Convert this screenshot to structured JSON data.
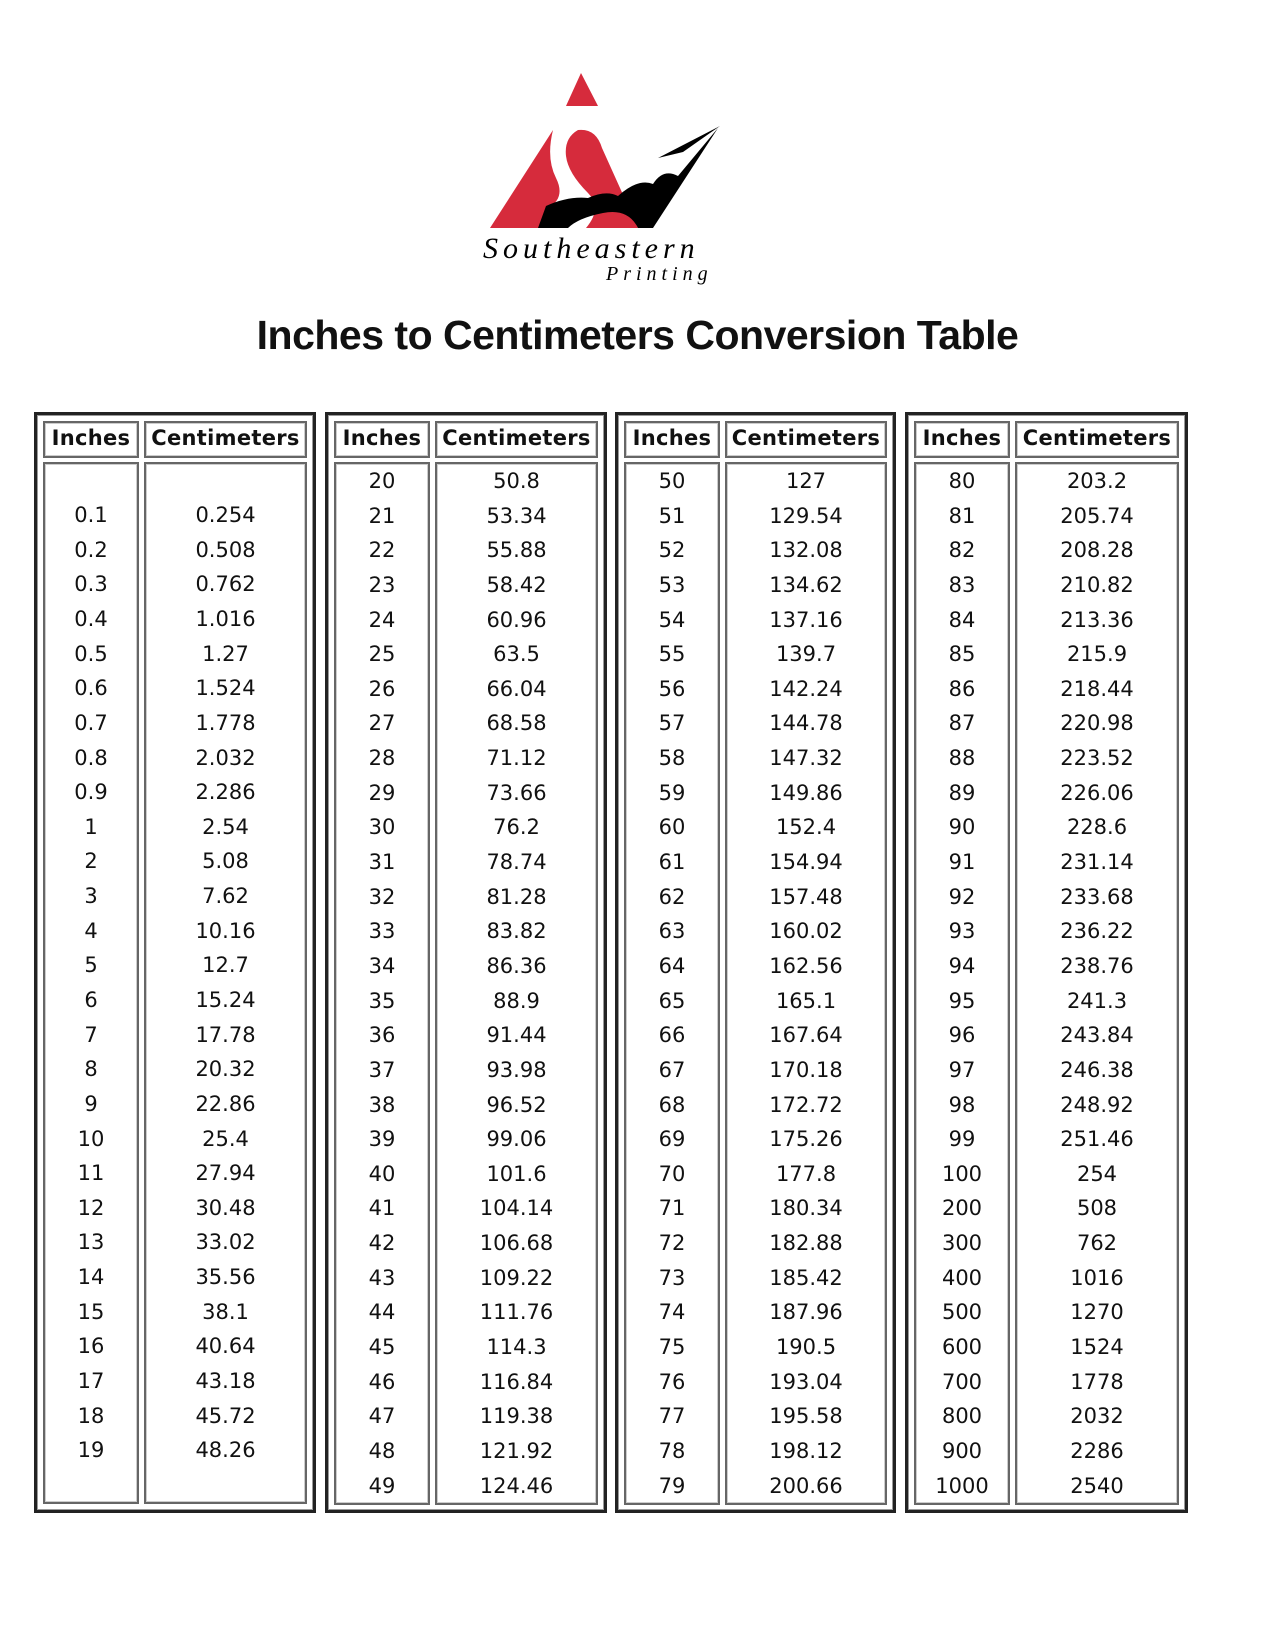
{
  "logo": {
    "company": "Southeastern",
    "sub": "Printing",
    "colors": {
      "red": "#d62b3c",
      "black": "#000000"
    }
  },
  "title": "Inches to Centimeters Conversion Table",
  "headers": {
    "inches": "Inches",
    "cm": "Centimeters"
  },
  "panels": [
    {
      "rows": [
        [
          "0.1",
          "0.254"
        ],
        [
          "0.2",
          "0.508"
        ],
        [
          "0.3",
          "0.762"
        ],
        [
          "0.4",
          "1.016"
        ],
        [
          "0.5",
          "1.27"
        ],
        [
          "0.6",
          "1.524"
        ],
        [
          "0.7",
          "1.778"
        ],
        [
          "0.8",
          "2.032"
        ],
        [
          "0.9",
          "2.286"
        ],
        [
          "1",
          "2.54"
        ],
        [
          "2",
          "5.08"
        ],
        [
          "3",
          "7.62"
        ],
        [
          "4",
          "10.16"
        ],
        [
          "5",
          "12.7"
        ],
        [
          "6",
          "15.24"
        ],
        [
          "7",
          "17.78"
        ],
        [
          "8",
          "20.32"
        ],
        [
          "9",
          "22.86"
        ],
        [
          "10",
          "25.4"
        ],
        [
          "11",
          "27.94"
        ],
        [
          "12",
          "30.48"
        ],
        [
          "13",
          "33.02"
        ],
        [
          "14",
          "35.56"
        ],
        [
          "15",
          "38.1"
        ],
        [
          "16",
          "40.64"
        ],
        [
          "17",
          "43.18"
        ],
        [
          "18",
          "45.72"
        ],
        [
          "19",
          "48.26"
        ]
      ]
    },
    {
      "rows": [
        [
          "20",
          "50.8"
        ],
        [
          "21",
          "53.34"
        ],
        [
          "22",
          "55.88"
        ],
        [
          "23",
          "58.42"
        ],
        [
          "24",
          "60.96"
        ],
        [
          "25",
          "63.5"
        ],
        [
          "26",
          "66.04"
        ],
        [
          "27",
          "68.58"
        ],
        [
          "28",
          "71.12"
        ],
        [
          "29",
          "73.66"
        ],
        [
          "30",
          "76.2"
        ],
        [
          "31",
          "78.74"
        ],
        [
          "32",
          "81.28"
        ],
        [
          "33",
          "83.82"
        ],
        [
          "34",
          "86.36"
        ],
        [
          "35",
          "88.9"
        ],
        [
          "36",
          "91.44"
        ],
        [
          "37",
          "93.98"
        ],
        [
          "38",
          "96.52"
        ],
        [
          "39",
          "99.06"
        ],
        [
          "40",
          "101.6"
        ],
        [
          "41",
          "104.14"
        ],
        [
          "42",
          "106.68"
        ],
        [
          "43",
          "109.22"
        ],
        [
          "44",
          "111.76"
        ],
        [
          "45",
          "114.3"
        ],
        [
          "46",
          "116.84"
        ],
        [
          "47",
          "119.38"
        ],
        [
          "48",
          "121.92"
        ],
        [
          "49",
          "124.46"
        ]
      ]
    },
    {
      "rows": [
        [
          "50",
          "127"
        ],
        [
          "51",
          "129.54"
        ],
        [
          "52",
          "132.08"
        ],
        [
          "53",
          "134.62"
        ],
        [
          "54",
          "137.16"
        ],
        [
          "55",
          "139.7"
        ],
        [
          "56",
          "142.24"
        ],
        [
          "57",
          "144.78"
        ],
        [
          "58",
          "147.32"
        ],
        [
          "59",
          "149.86"
        ],
        [
          "60",
          "152.4"
        ],
        [
          "61",
          "154.94"
        ],
        [
          "62",
          "157.48"
        ],
        [
          "63",
          "160.02"
        ],
        [
          "64",
          "162.56"
        ],
        [
          "65",
          "165.1"
        ],
        [
          "66",
          "167.64"
        ],
        [
          "67",
          "170.18"
        ],
        [
          "68",
          "172.72"
        ],
        [
          "69",
          "175.26"
        ],
        [
          "70",
          "177.8"
        ],
        [
          "71",
          "180.34"
        ],
        [
          "72",
          "182.88"
        ],
        [
          "73",
          "185.42"
        ],
        [
          "74",
          "187.96"
        ],
        [
          "75",
          "190.5"
        ],
        [
          "76",
          "193.04"
        ],
        [
          "77",
          "195.58"
        ],
        [
          "78",
          "198.12"
        ],
        [
          "79",
          "200.66"
        ]
      ]
    },
    {
      "rows": [
        [
          "80",
          "203.2"
        ],
        [
          "81",
          "205.74"
        ],
        [
          "82",
          "208.28"
        ],
        [
          "83",
          "210.82"
        ],
        [
          "84",
          "213.36"
        ],
        [
          "85",
          "215.9"
        ],
        [
          "86",
          "218.44"
        ],
        [
          "87",
          "220.98"
        ],
        [
          "88",
          "223.52"
        ],
        [
          "89",
          "226.06"
        ],
        [
          "90",
          "228.6"
        ],
        [
          "91",
          "231.14"
        ],
        [
          "92",
          "233.68"
        ],
        [
          "93",
          "236.22"
        ],
        [
          "94",
          "238.76"
        ],
        [
          "95",
          "241.3"
        ],
        [
          "96",
          "243.84"
        ],
        [
          "97",
          "246.38"
        ],
        [
          "98",
          "248.92"
        ],
        [
          "99",
          "251.46"
        ],
        [
          "100",
          "254"
        ],
        [
          "200",
          "508"
        ],
        [
          "300",
          "762"
        ],
        [
          "400",
          "1016"
        ],
        [
          "500",
          "1270"
        ],
        [
          "600",
          "1524"
        ],
        [
          "700",
          "1778"
        ],
        [
          "800",
          "2032"
        ],
        [
          "900",
          "2286"
        ],
        [
          "1000",
          "2540"
        ]
      ]
    }
  ]
}
